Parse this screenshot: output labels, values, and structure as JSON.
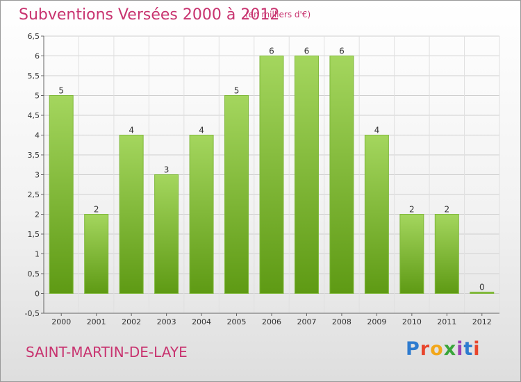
{
  "title": "Subventions Versées 2000 à 2012",
  "unit": "(en milliers d'€)",
  "commune": "SAINT-MARTIN-DE-LAYE",
  "logo": {
    "text": "Proxiti",
    "colors": [
      "#2e7bcf",
      "#e8452c",
      "#f2a71b",
      "#3aa53a",
      "#9b3fb5",
      "#2e7bcf",
      "#e8452c"
    ]
  },
  "chart_data": {
    "type": "bar",
    "categories": [
      "2000",
      "2001",
      "2002",
      "2003",
      "2004",
      "2005",
      "2006",
      "2007",
      "2008",
      "2009",
      "2010",
      "2011",
      "2012"
    ],
    "values": [
      5,
      2,
      4,
      3,
      4,
      5,
      6,
      6,
      6,
      4,
      2,
      2,
      0
    ],
    "data_labels": [
      "5",
      "2",
      "4",
      "3",
      "4",
      "5",
      "6",
      "6",
      "6",
      "4",
      "2",
      "2",
      "0"
    ],
    "ylim": [
      -0.5,
      6.5
    ],
    "yticks": [
      -0.5,
      0,
      0.5,
      1,
      1.5,
      2,
      2.5,
      3,
      3.5,
      4,
      4.5,
      5,
      5.5,
      6,
      6.5
    ],
    "ytick_labels": [
      "-0,5",
      "0",
      "0,5",
      "1",
      "1,5",
      "2",
      "2,5",
      "3",
      "3,5",
      "4",
      "4,5",
      "5",
      "5,5",
      "6",
      "6,5"
    ],
    "grid": true,
    "bar_color_top": "#a4d65e",
    "bar_color_bottom": "#5e9a14"
  }
}
